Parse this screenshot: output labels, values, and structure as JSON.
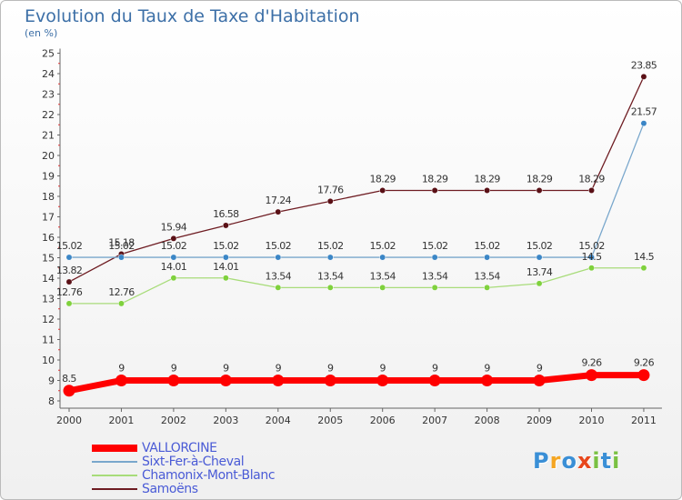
{
  "header": {
    "title": "Evolution du Taux de Taxe d'Habitation",
    "subtitle": "(en %)"
  },
  "chart_data": {
    "type": "line",
    "title": "Evolution du Taux de Taxe d'Habitation",
    "ylabel": "(en %)",
    "xlabel": "",
    "ylim": [
      8,
      25
    ],
    "yticks": [
      8,
      9,
      10,
      11,
      12,
      13,
      14,
      15,
      16,
      17,
      18,
      19,
      20,
      21,
      22,
      23,
      24,
      25
    ],
    "categories": [
      "2000",
      "2001",
      "2002",
      "2003",
      "2004",
      "2005",
      "2006",
      "2007",
      "2008",
      "2009",
      "2010",
      "2011"
    ],
    "legend_position": "bottom-left",
    "grid": false,
    "series": [
      {
        "name": "Samoëns",
        "color": "#6e1c22",
        "marker_color": "#5a1016",
        "values": [
          13.82,
          15.18,
          15.94,
          16.58,
          17.24,
          17.76,
          18.29,
          18.29,
          18.29,
          18.29,
          18.29,
          23.85
        ],
        "labels": [
          "13.82",
          "15.18",
          "15.94",
          "16.58",
          "17.24",
          "17.76",
          "18.29",
          "18.29",
          "18.29",
          "18.29",
          "18.29",
          "23.85"
        ]
      },
      {
        "name": "Sixt-Fer-à-Cheval",
        "color": "#79a7cc",
        "marker_color": "#3b86c6",
        "values": [
          15.02,
          15.02,
          15.02,
          15.02,
          15.02,
          15.02,
          15.02,
          15.02,
          15.02,
          15.02,
          15.02,
          21.57
        ],
        "labels": [
          "15.02",
          "15.02",
          "15.02",
          "15.02",
          "15.02",
          "15.02",
          "15.02",
          "15.02",
          "15.02",
          "15.02",
          "15.02",
          "21.57"
        ]
      },
      {
        "name": "Chamonix-Mont-Blanc",
        "color": "#a8dc7a",
        "marker_color": "#7fd13d",
        "values": [
          12.76,
          12.76,
          14.01,
          14.01,
          13.54,
          13.54,
          13.54,
          13.54,
          13.54,
          13.74,
          14.5,
          14.5
        ],
        "labels": [
          "12.76",
          "12.76",
          "14.01",
          "14.01",
          "13.54",
          "13.54",
          "13.54",
          "13.54",
          "13.54",
          "13.74",
          "14.5",
          "14.5"
        ]
      },
      {
        "name": "VALLORCINE",
        "color": "#ff0000",
        "marker_color": "#ff0000",
        "values": [
          8.5,
          9,
          9,
          9,
          9,
          9,
          9,
          9,
          9,
          9,
          9.26,
          9.26
        ],
        "labels": [
          "8.5",
          "9",
          "9",
          "9",
          "9",
          "9",
          "9",
          "9",
          "9",
          "9",
          "9.26",
          "9.26"
        ]
      }
    ]
  },
  "legend": [
    {
      "label": "VALLORCINE",
      "color": "#ff0000"
    },
    {
      "label": "Sixt-Fer-à-Cheval",
      "color": "#79a7cc"
    },
    {
      "label": "Chamonix-Mont-Blanc",
      "color": "#a8dc7a"
    },
    {
      "label": "Samoëns",
      "color": "#6e1c22"
    }
  ],
  "logo": {
    "text": "Proxiti",
    "letters": [
      "P",
      "r",
      "o",
      "x",
      "i",
      "t",
      "i"
    ],
    "colors": [
      "#3a8fd6",
      "#f5a623",
      "#3a8fd6",
      "#e8471c",
      "#7ac143",
      "#3a8fd6",
      "#7ac143"
    ]
  }
}
